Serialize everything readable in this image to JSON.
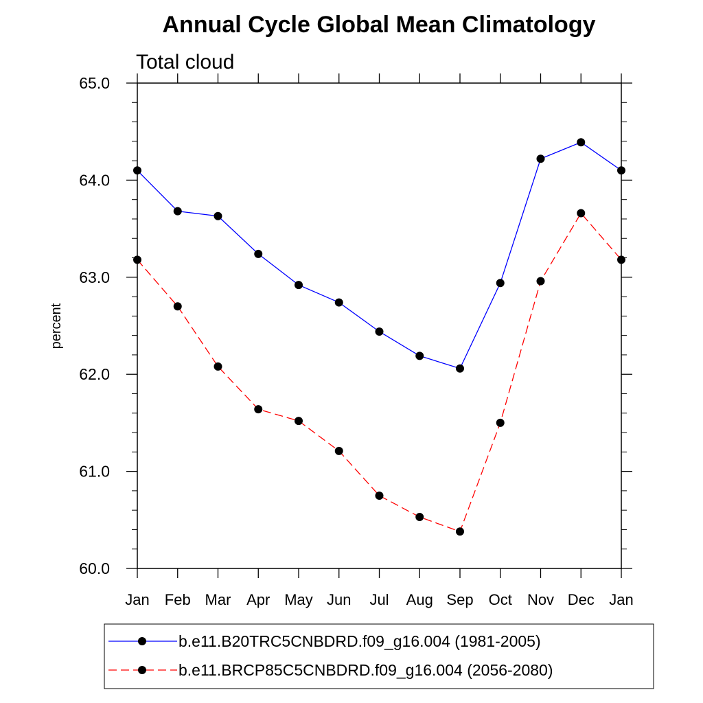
{
  "chart_data": {
    "type": "line",
    "title": "Annual Cycle Global Mean Climatology",
    "subtitle": "Total cloud",
    "xlabel": "",
    "ylabel": "percent",
    "categories": [
      "Jan",
      "Feb",
      "Mar",
      "Apr",
      "May",
      "Jun",
      "Jul",
      "Aug",
      "Sep",
      "Oct",
      "Nov",
      "Dec",
      "Jan"
    ],
    "ylim": [
      60.0,
      65.0
    ],
    "yticks": [
      "60.0",
      "61.0",
      "62.0",
      "63.0",
      "64.0",
      "65.0"
    ],
    "series": [
      {
        "name": "b.e11.B20TRC5CNBDRD.f09_g16.004 (1981-2005)",
        "color": "#0000ff",
        "style": "solid",
        "values": [
          64.1,
          63.68,
          63.63,
          63.24,
          62.92,
          62.74,
          62.44,
          62.19,
          62.06,
          62.94,
          64.22,
          64.39,
          64.1
        ]
      },
      {
        "name": "b.e11.BRCP85C5CNBDRD.f09_g16.004 (2056-2080)",
        "color": "#ff0000",
        "style": "dashed",
        "values": [
          63.18,
          62.7,
          62.08,
          61.64,
          61.52,
          61.21,
          60.75,
          60.53,
          60.38,
          61.5,
          62.96,
          63.66,
          63.18
        ]
      }
    ],
    "legend_position": "bottom"
  }
}
